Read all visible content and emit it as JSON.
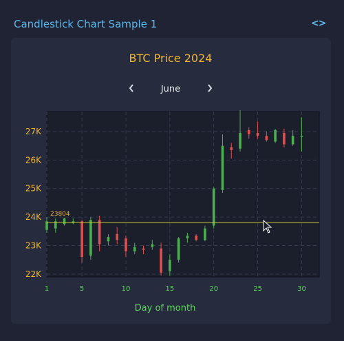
{
  "header": {
    "title": "Candlestick Chart Sample 1",
    "code_icon": "code-brackets-icon"
  },
  "nav": {
    "month": "June",
    "prev_icon": "chevron-left-icon",
    "next_icon": "chevron-right-icon"
  },
  "colors": {
    "accent": "#5fb6e8",
    "title": "#f0b632",
    "axis_label": "#5ed65e",
    "up": "#4caf50",
    "down": "#e05050",
    "crosshair": "#c8c832"
  },
  "chart_data": {
    "type": "candlestick",
    "title": "BTC Price 2024",
    "xlabel": "Day of month",
    "ylabel": "",
    "xlim": [
      1,
      32
    ],
    "ylim": [
      21900,
      27700
    ],
    "x_ticks": [
      1,
      5,
      10,
      15,
      20,
      25,
      30
    ],
    "y_ticks": [
      {
        "value": 22000,
        "label": "22K"
      },
      {
        "value": 23000,
        "label": "23K"
      },
      {
        "value": 24000,
        "label": "24K"
      },
      {
        "value": 25000,
        "label": "25K"
      },
      {
        "value": 26000,
        "label": "26K"
      },
      {
        "value": 27000,
        "label": "27K"
      }
    ],
    "crosshair": {
      "value": 23804,
      "label": "23804"
    },
    "candles": [
      {
        "day": 1,
        "open": 23550,
        "high": 24000,
        "low": 23450,
        "close": 23850
      },
      {
        "day": 2,
        "open": 23600,
        "high": 23950,
        "low": 23450,
        "close": 23850
      },
      {
        "day": 3,
        "open": 23750,
        "high": 23980,
        "low": 23700,
        "close": 23950
      },
      {
        "day": 4,
        "open": 23800,
        "high": 23950,
        "low": 23750,
        "close": 23850
      },
      {
        "day": 5,
        "open": 23850,
        "high": 23900,
        "low": 22400,
        "close": 22600
      },
      {
        "day": 6,
        "open": 22650,
        "high": 24000,
        "low": 22500,
        "close": 23900
      },
      {
        "day": 7,
        "open": 23900,
        "high": 24050,
        "low": 22800,
        "close": 23050
      },
      {
        "day": 8,
        "open": 23150,
        "high": 23400,
        "low": 23000,
        "close": 23300
      },
      {
        "day": 9,
        "open": 23400,
        "high": 23650,
        "low": 23050,
        "close": 23200
      },
      {
        "day": 10,
        "open": 23250,
        "high": 23350,
        "low": 22600,
        "close": 22800
      },
      {
        "day": 11,
        "open": 22800,
        "high": 23100,
        "low": 22700,
        "close": 22950
      },
      {
        "day": 12,
        "open": 22900,
        "high": 23000,
        "low": 22700,
        "close": 22850
      },
      {
        "day": 13,
        "open": 22950,
        "high": 23200,
        "low": 22850,
        "close": 23050
      },
      {
        "day": 14,
        "open": 22900,
        "high": 23100,
        "low": 21950,
        "close": 22050
      },
      {
        "day": 15,
        "open": 22100,
        "high": 22700,
        "low": 21950,
        "close": 22500
      },
      {
        "day": 16,
        "open": 22500,
        "high": 23300,
        "low": 22400,
        "close": 23250
      },
      {
        "day": 17,
        "open": 23250,
        "high": 23450,
        "low": 23100,
        "close": 23350
      },
      {
        "day": 18,
        "open": 23350,
        "high": 23400,
        "low": 23150,
        "close": 23200
      },
      {
        "day": 19,
        "open": 23200,
        "high": 23700,
        "low": 23150,
        "close": 23600
      },
      {
        "day": 20,
        "open": 23700,
        "high": 25050,
        "low": 23600,
        "close": 25000
      },
      {
        "day": 21,
        "open": 24950,
        "high": 26900,
        "low": 24850,
        "close": 26500
      },
      {
        "day": 22,
        "open": 26450,
        "high": 26600,
        "low": 26050,
        "close": 26350
      },
      {
        "day": 23,
        "open": 26400,
        "high": 27750,
        "low": 26300,
        "close": 26950
      },
      {
        "day": 24,
        "open": 27050,
        "high": 27150,
        "low": 26750,
        "close": 26900
      },
      {
        "day": 25,
        "open": 26950,
        "high": 27350,
        "low": 26750,
        "close": 26850
      },
      {
        "day": 26,
        "open": 26850,
        "high": 27000,
        "low": 26650,
        "close": 26700
      },
      {
        "day": 27,
        "open": 26650,
        "high": 27100,
        "low": 26600,
        "close": 27050
      },
      {
        "day": 28,
        "open": 26950,
        "high": 27100,
        "low": 26450,
        "close": 26550
      },
      {
        "day": 29,
        "open": 26550,
        "high": 27050,
        "low": 26500,
        "close": 26850
      },
      {
        "day": 30,
        "open": 26850,
        "high": 27500,
        "low": 26300,
        "close": 26850
      }
    ]
  }
}
